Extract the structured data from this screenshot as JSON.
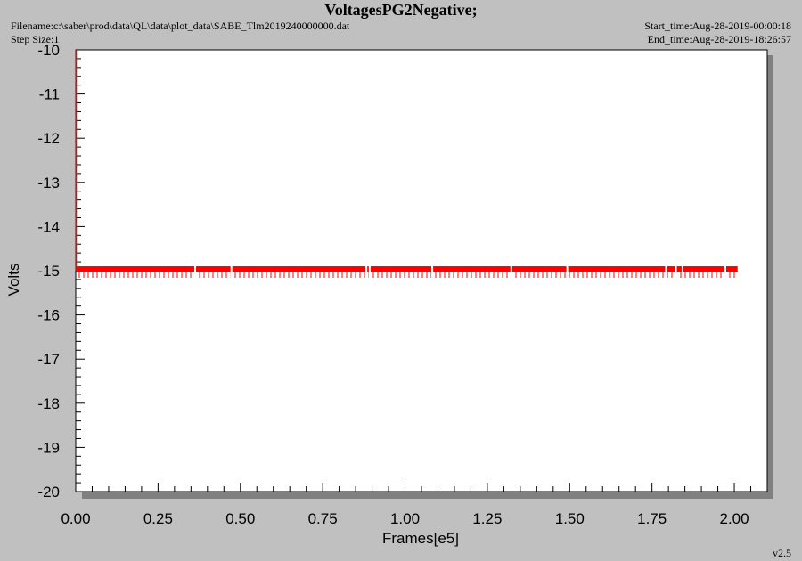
{
  "header": {
    "title": "VoltagesPG2Negative;",
    "filename": "Filename:c:\\saber\\prod\\data\\QL\\data\\plot_data\\SABE_Tlm2019240000000.dat",
    "step_size": "Step Size:1",
    "start_time": "Start_time:Aug-28-2019-00:00:18",
    "end_time": "End_time:Aug-28-2019-18:26:57"
  },
  "footer": {
    "version": "v2.5"
  },
  "colors": {
    "series": "#ff0000",
    "plot_bg": "#ffffff",
    "page_bg": "#c0c0c0",
    "shadow": "#808080"
  },
  "chart_data": {
    "type": "line",
    "title": "VoltagesPG2Negative;",
    "xlabel": "Frames[e5]",
    "ylabel": "Volts",
    "xlim": [
      0.0,
      2.1
    ],
    "ylim": [
      -20,
      -10
    ],
    "y_inverted": true,
    "xticks": [
      "0.00",
      "0.25",
      "0.50",
      "0.75",
      "1.00",
      "1.25",
      "1.50",
      "1.75",
      "2.00"
    ],
    "yticks": [
      "-10",
      "-11",
      "-12",
      "-13",
      "-14",
      "-15",
      "-16",
      "-17",
      "-18",
      "-19",
      "-20"
    ],
    "grid": false,
    "series": [
      {
        "color": "#ff0000",
        "x_range": [
          0.0,
          2.01
        ],
        "baseline": -15.0,
        "band": [
          -15.0,
          -14.9
        ],
        "initial_spike": {
          "x": 0.0,
          "y_from": -10.0,
          "y_to": -15.0
        },
        "gaps": [
          0.36,
          0.47,
          0.88,
          0.89,
          1.08,
          1.32,
          1.49,
          1.79,
          1.82,
          1.84,
          1.97
        ]
      }
    ]
  }
}
